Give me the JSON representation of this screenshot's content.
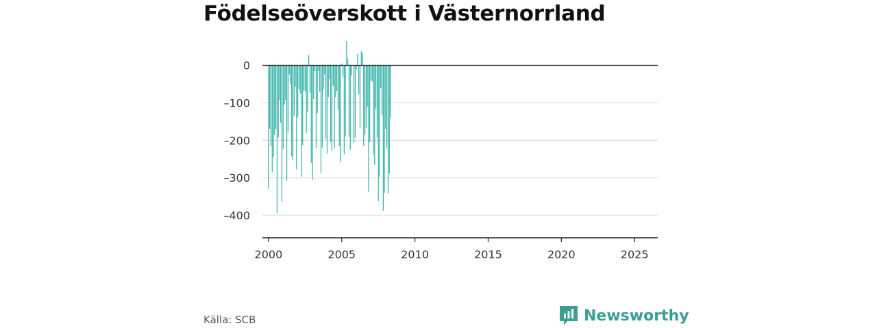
{
  "title": "Födelseöverskott i Västernorrland",
  "source": "Källa: SCB",
  "brand": {
    "name": "Newsworthy",
    "icon": "newsworthy-logo-icon",
    "color": "#3a9e96"
  },
  "colors": {
    "bar": "#17a69b",
    "grid": "#dddddd",
    "axis": "#222222"
  },
  "chart_data": {
    "type": "bar",
    "title": "Födelseöverskott i Västernorrland",
    "xlabel": "",
    "ylabel": "",
    "frequency": "monthly",
    "x_start": "2000-01",
    "ylim": [
      -460,
      65
    ],
    "xlim": [
      "1999-08",
      "2026-08"
    ],
    "yticks": [
      0,
      -100,
      -200,
      -300,
      -400
    ],
    "ytick_labels": [
      "0",
      "–100",
      "–200",
      "–300",
      "–400"
    ],
    "xticks": [
      2000,
      2005,
      2010,
      2015,
      2020,
      2025
    ],
    "xtick_labels": [
      "2000",
      "2005",
      "2010",
      "2015",
      "2020",
      "2025"
    ],
    "grid": true,
    "legend": "none",
    "series": [
      {
        "values": [
          -330,
          -170,
          -215,
          -285,
          -245,
          -185,
          -170,
          -395,
          -193,
          -93,
          -153,
          -363,
          -222,
          -105,
          -93,
          -308,
          -180,
          -25,
          -50,
          -243,
          -253,
          -135,
          -57,
          -277,
          -138,
          -63,
          -75,
          -297,
          -213,
          -67,
          -70,
          -180,
          -125,
          27,
          -73,
          -260,
          -305,
          -90,
          -15,
          -220,
          -127,
          -15,
          -70,
          -287,
          -220,
          -65,
          -25,
          -195,
          -235,
          -85,
          -35,
          -205,
          -228,
          -55,
          -220,
          -85,
          -68,
          -118,
          -215,
          -258,
          5,
          -30,
          -237,
          -190,
          65,
          17,
          -190,
          -225,
          -27,
          0,
          -207,
          -193,
          -10,
          30,
          -77,
          -167,
          38,
          33,
          -215,
          -185,
          -167,
          -110,
          -337,
          -205,
          -40,
          -43,
          -240,
          -265,
          -115,
          -192,
          -362,
          -297,
          -60,
          -133,
          -388,
          -340,
          -170,
          -220,
          -343,
          -288,
          -140
        ]
      }
    ]
  }
}
